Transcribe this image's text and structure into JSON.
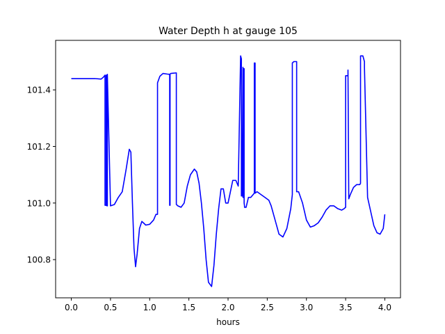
{
  "chart_data": {
    "type": "line",
    "title": "Water Depth h at gauge 105",
    "xlabel": "hours",
    "ylabel": "",
    "xlim": [
      -0.2,
      4.2
    ],
    "ylim": [
      100.665,
      101.575
    ],
    "xticks": [
      0.0,
      0.5,
      1.0,
      1.5,
      2.0,
      2.5,
      3.0,
      3.5,
      4.0
    ],
    "xtick_labels": [
      "0.0",
      "0.5",
      "1.0",
      "1.5",
      "2.0",
      "2.5",
      "3.0",
      "3.5",
      "4.0"
    ],
    "yticks": [
      100.8,
      101.0,
      101.2,
      101.4
    ],
    "ytick_labels": [
      "100.8",
      "101.0",
      "101.2",
      "101.4"
    ],
    "grid": false,
    "legend": "none",
    "series": [
      {
        "color": "#0000ff",
        "x": [
          0.0,
          0.3,
          0.38,
          0.41,
          0.43,
          0.43,
          0.445,
          0.445,
          0.455,
          0.455,
          0.46,
          0.46,
          0.5,
          0.55,
          0.6,
          0.65,
          0.7,
          0.74,
          0.76,
          0.78,
          0.8,
          0.82,
          0.84,
          0.87,
          0.9,
          0.92,
          0.95,
          1.0,
          1.05,
          1.08,
          1.1,
          1.1,
          1.13,
          1.17,
          1.22,
          1.25,
          1.255,
          1.255,
          1.26,
          1.26,
          1.27,
          1.3,
          1.34,
          1.34,
          1.36,
          1.4,
          1.44,
          1.48,
          1.52,
          1.57,
          1.6,
          1.63,
          1.66,
          1.69,
          1.72,
          1.75,
          1.79,
          1.82,
          1.85,
          1.88,
          1.91,
          1.94,
          1.97,
          2.0,
          2.03,
          2.06,
          2.1,
          2.13,
          2.16,
          2.17,
          2.17,
          2.18,
          2.19,
          2.19,
          2.2,
          2.2,
          2.205,
          2.205,
          2.21,
          2.21,
          2.23,
          2.26,
          2.29,
          2.32,
          2.335,
          2.335,
          2.345,
          2.345,
          2.37,
          2.42,
          2.47,
          2.52,
          2.55,
          2.6,
          2.65,
          2.7,
          2.75,
          2.8,
          2.82,
          2.82,
          2.84,
          2.87,
          2.875,
          2.875,
          2.9,
          2.95,
          3.0,
          3.05,
          3.1,
          3.15,
          3.2,
          3.25,
          3.3,
          3.35,
          3.4,
          3.45,
          3.48,
          3.5,
          3.5,
          3.53,
          3.53,
          3.54,
          3.54,
          3.56,
          3.6,
          3.64,
          3.68,
          3.69,
          3.69,
          3.72,
          3.74,
          3.74,
          3.78,
          3.82,
          3.86,
          3.9,
          3.94,
          3.98,
          4.0
        ],
        "y": [
          101.44,
          101.44,
          101.438,
          101.445,
          101.452,
          100.992,
          100.992,
          101.452,
          101.452,
          100.99,
          100.99,
          101.455,
          100.99,
          100.995,
          101.02,
          101.04,
          101.12,
          101.19,
          101.18,
          101.0,
          100.84,
          100.775,
          100.82,
          100.91,
          100.935,
          100.93,
          100.922,
          100.925,
          100.94,
          100.96,
          100.96,
          101.425,
          101.448,
          101.458,
          101.456,
          101.455,
          101.455,
          100.992,
          100.992,
          101.456,
          101.458,
          101.459,
          101.46,
          100.995,
          100.99,
          100.985,
          101.0,
          101.06,
          101.1,
          101.12,
          101.11,
          101.07,
          101.0,
          100.91,
          100.8,
          100.72,
          100.705,
          100.78,
          100.89,
          100.98,
          101.05,
          101.05,
          101.0,
          101.0,
          101.04,
          101.08,
          101.08,
          101.06,
          101.52,
          101.51,
          101.025,
          101.025,
          101.48,
          101.02,
          101.02,
          101.475,
          101.475,
          101.0,
          100.99,
          100.985,
          100.985,
          101.02,
          101.02,
          101.03,
          101.035,
          101.495,
          101.495,
          101.035,
          101.04,
          101.03,
          101.02,
          101.01,
          100.99,
          100.94,
          100.89,
          100.88,
          100.91,
          100.98,
          101.03,
          101.495,
          101.5,
          101.5,
          101.5,
          101.04,
          101.04,
          101.0,
          100.94,
          100.915,
          100.92,
          100.93,
          100.95,
          100.975,
          100.99,
          100.99,
          100.98,
          100.975,
          100.98,
          100.985,
          101.45,
          101.45,
          101.47,
          101.015,
          101.015,
          101.03,
          101.055,
          101.065,
          101.065,
          101.07,
          101.52,
          101.52,
          101.5,
          101.48,
          101.02,
          100.97,
          100.92,
          100.895,
          100.89,
          100.91,
          100.96
        ]
      }
    ]
  }
}
